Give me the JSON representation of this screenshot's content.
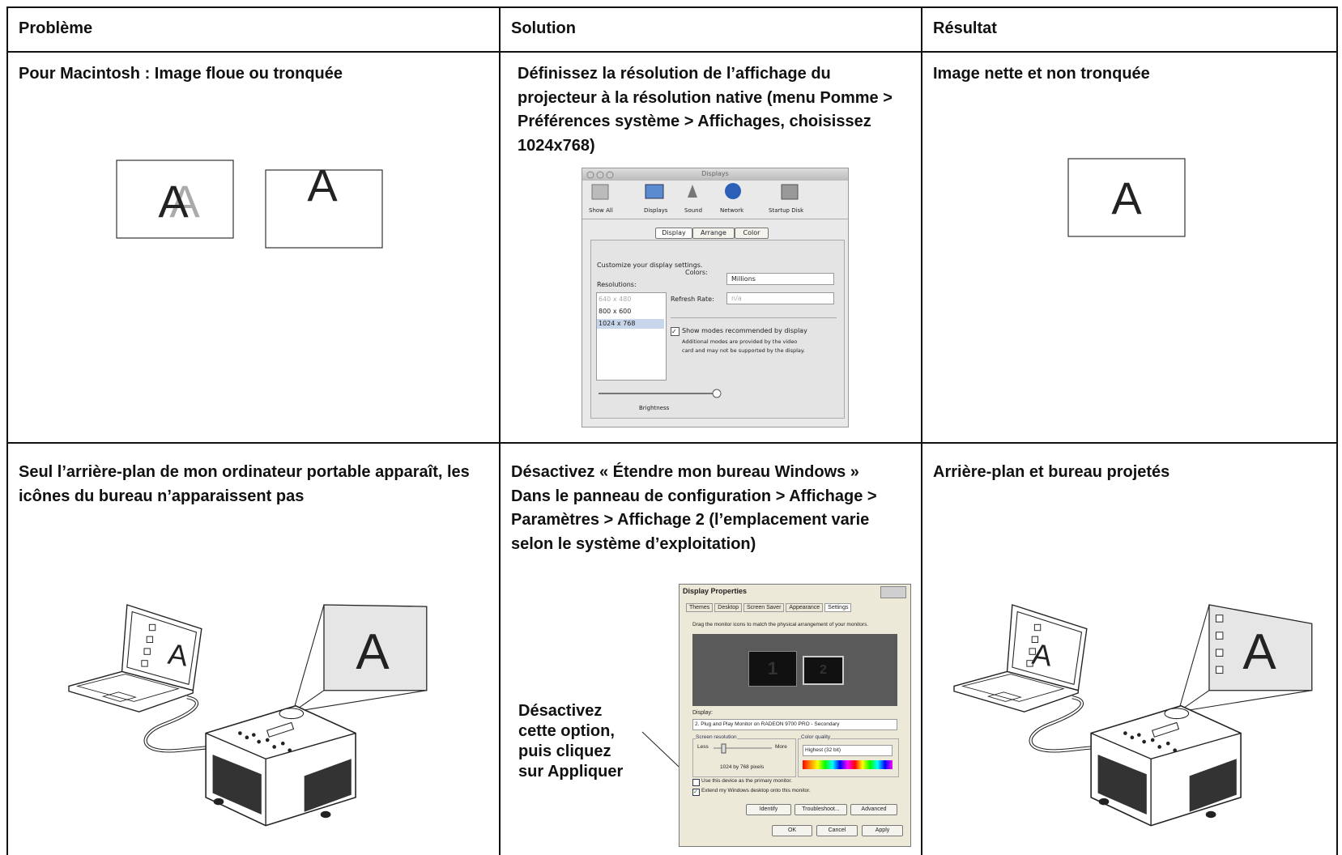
{
  "table": {
    "header": [
      "Problème",
      "Solution",
      "Résultat"
    ],
    "rows": [
      [
        "Pour Macintosh : Image floue ou tronquée",
        "Définissez la résolution de l’affichage du projecteur à la résolution native (menu Pomme > Préférences système > Affichages, choisissez 1024x768)",
        "Image nette et non tronquée"
      ],
      [
        "Seul l’arrière-plan de mon ordinateur portable apparaît, les icônes du bureau n’apparaissent pas",
        "Désactivez « Étendre mon bureau Windows » Dans le panneau de configuration > Affichage > Paramètres > Affichage 2 (l’emplacement varie selon le système d’exploitation)",
        "Arrière-plan et bureau projetés"
      ]
    ]
  },
  "illustration_letter": "A",
  "mac_dialog": {
    "title": "Displays",
    "toolbar": [
      "Show All",
      "Displays",
      "Sound",
      "Network",
      "Startup Disk"
    ],
    "tabs": [
      "Display",
      "Arrange",
      "Color"
    ],
    "intro": "Customize your display settings.",
    "resolutions_label": "Resolutions:",
    "resolutions": [
      "640 x 480",
      "800 x 600",
      "1024 x 768"
    ],
    "colors_label": "Colors:",
    "colors_value": "Millions",
    "refresh_label": "Refresh Rate:",
    "refresh_value": "n/a",
    "checkbox": "Show modes recommended by display",
    "note": [
      "Additional modes are provided by the video",
      "card and may not be supported by the display."
    ],
    "brightness": "Brightness"
  },
  "win_dialog": {
    "title": "Display Properties",
    "tabs": [
      "Themes",
      "Desktop",
      "Screen Saver",
      "Appearance",
      "Settings"
    ],
    "instruction": "Drag the monitor icons to match the physical arrangement of your monitors.",
    "monitors": [
      "1",
      "2"
    ],
    "display_label": "Display:",
    "display_value": "2. Plug and Play Monitor on RADEON 9700 PRO - Secondary",
    "resolution_label": "Screen resolution",
    "less": "Less",
    "more": "More",
    "resolution_value": "1024 by 768 pixels",
    "quality_label": "Color quality",
    "quality_value": "Highest (32 bit)",
    "checkboxes": [
      "Use this device as the primary monitor.",
      "Extend my Windows desktop onto this monitor."
    ],
    "buttons": [
      "Identify",
      "Troubleshoot...",
      "Advanced"
    ],
    "footer_buttons": [
      "OK",
      "Cancel",
      "Apply"
    ]
  },
  "callout": [
    "Désactivez",
    "cette option,",
    "puis cliquez",
    "sur Appliquer"
  ]
}
